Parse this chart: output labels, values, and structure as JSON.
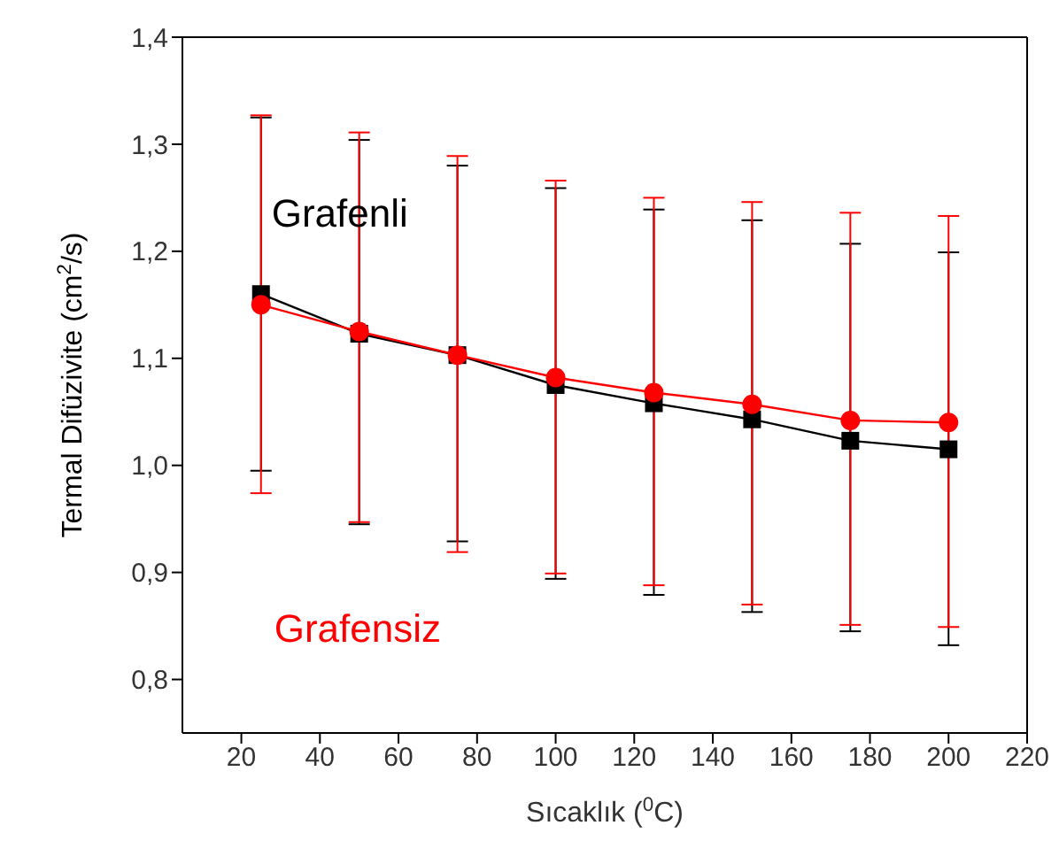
{
  "chart_data": {
    "type": "line",
    "xlabel": "Sıcaklık ($^{0}$C)",
    "ylabel": "Termal Difüzivite (cm$^{2}$/s)",
    "x": [
      25,
      50,
      75,
      100,
      125,
      150,
      175,
      200
    ],
    "series": [
      {
        "name": "Grafenli",
        "color": "#000000",
        "marker": "square",
        "values": [
          1.16,
          1.123,
          1.103,
          1.075,
          1.058,
          1.043,
          1.023,
          1.015
        ],
        "errors": [
          [
            0.995,
            1.325
          ],
          [
            0.945,
            1.304
          ],
          [
            0.929,
            1.28
          ],
          [
            0.894,
            1.259
          ],
          [
            0.879,
            1.239
          ],
          [
            0.863,
            1.229
          ],
          [
            0.845,
            1.207
          ],
          [
            0.832,
            1.199
          ]
        ]
      },
      {
        "name": "Grafensiz",
        "color": "#ff0000",
        "marker": "circle",
        "values": [
          1.15,
          1.125,
          1.103,
          1.082,
          1.068,
          1.057,
          1.042,
          1.04
        ],
        "errors": [
          [
            0.974,
            1.327
          ],
          [
            0.947,
            1.311
          ],
          [
            0.919,
            1.289
          ],
          [
            0.899,
            1.266
          ],
          [
            0.888,
            1.25
          ],
          [
            0.87,
            1.246
          ],
          [
            0.851,
            1.236
          ],
          [
            0.849,
            1.233
          ]
        ]
      }
    ],
    "xlim": [
      5,
      220
    ],
    "xticks": [
      20,
      40,
      60,
      80,
      100,
      120,
      140,
      160,
      180,
      200,
      220
    ],
    "ylim": [
      0.75,
      1.4
    ],
    "yticks": [
      {
        "value": 0.8,
        "label": "0,8"
      },
      {
        "value": 0.9,
        "label": "0,9"
      },
      {
        "value": 1.0,
        "label": "1,0"
      },
      {
        "value": 1.1,
        "label": "1,1"
      },
      {
        "value": 1.2,
        "label": "1,2"
      },
      {
        "value": 1.3,
        "label": "1,3"
      },
      {
        "value": 1.4,
        "label": "1,4"
      }
    ],
    "grid": false,
    "legend": false,
    "line_style": "solid"
  }
}
